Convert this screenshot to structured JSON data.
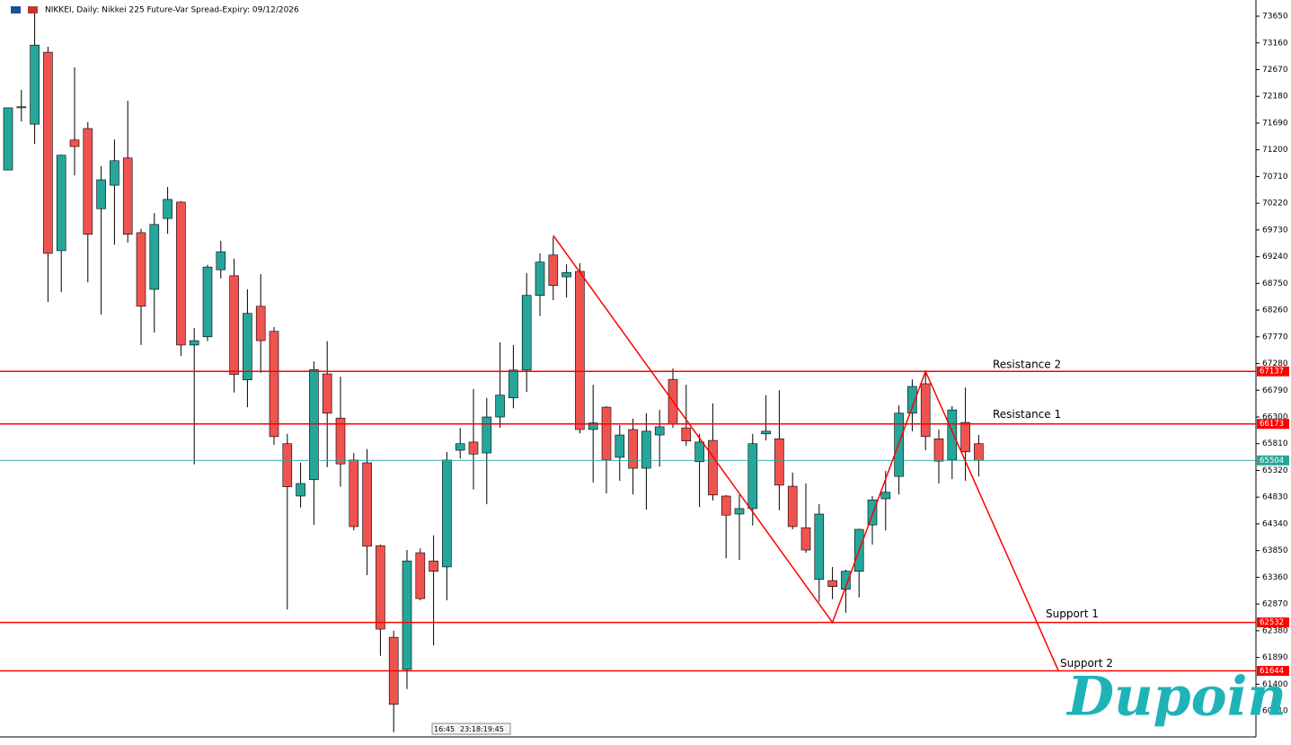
{
  "chart_data": {
    "type": "candlestick",
    "title": "NIKKEI, Daily:  Nikkei 225 Future-Var Spread-Expiry: 09/12/2026",
    "up_color": "#26a69a",
    "down_color": "#ef5350",
    "wick_color": "#000000",
    "open": [
      70830,
      71970,
      71670,
      72990,
      69350,
      71380,
      71590,
      70120,
      70550,
      71050,
      69680,
      68640,
      69940,
      70240,
      67620,
      67770,
      69000,
      68890,
      66980,
      68330,
      67870,
      65810,
      64850,
      65150,
      67090,
      66280,
      65510,
      65460,
      63940,
      62260,
      61670,
      63810,
      63660,
      63550,
      65690,
      65840,
      65640,
      66300,
      66650,
      67160,
      68530,
      69270,
      68870,
      68970,
      66070,
      66480,
      65560,
      66070,
      65360,
      65970,
      66990,
      66100,
      65480,
      65870,
      64850,
      64520,
      64620,
      65990,
      65900,
      65030,
      64270,
      63320,
      63300,
      63140,
      63470,
      64320,
      64800,
      65210,
      66370,
      66910,
      65900,
      65510,
      66200,
      65810
    ],
    "high": [
      71970,
      72300,
      73700,
      73090,
      71110,
      72710,
      71710,
      70900,
      71390,
      72100,
      69750,
      70040,
      70520,
      70260,
      67930,
      69090,
      69530,
      69200,
      68640,
      68920,
      67950,
      65990,
      65460,
      67320,
      67690,
      67040,
      65640,
      65710,
      63960,
      62380,
      63860,
      63890,
      64130,
      65660,
      66100,
      66810,
      66650,
      67670,
      67620,
      68940,
      69300,
      69600,
      69100,
      69120,
      66890,
      66500,
      66150,
      66270,
      66370,
      66430,
      67190,
      66890,
      65990,
      66550,
      64870,
      64870,
      65990,
      66700,
      66790,
      65280,
      65080,
      64700,
      63550,
      63500,
      64250,
      64850,
      65310,
      66510,
      66990,
      67140,
      66070,
      66500,
      66840,
      65970
    ],
    "low": [
      70830,
      71720,
      71310,
      68410,
      68590,
      70730,
      68770,
      68180,
      69460,
      69500,
      67620,
      67850,
      69660,
      67420,
      65430,
      67690,
      68840,
      66750,
      66480,
      67110,
      65790,
      62770,
      64640,
      64320,
      65380,
      65020,
      64220,
      63400,
      61920,
      60520,
      61310,
      62940,
      62110,
      62940,
      65540,
      64970,
      64700,
      66100,
      66460,
      66760,
      68150,
      68440,
      68490,
      66000,
      65100,
      64900,
      65130,
      64880,
      64600,
      65390,
      66100,
      65770,
      64650,
      64770,
      63710,
      63680,
      64310,
      65870,
      64590,
      64240,
      63810,
      62910,
      62960,
      62710,
      62990,
      63960,
      64220,
      64880,
      66040,
      65690,
      65080,
      65160,
      65130,
      65210
    ],
    "close": [
      71970,
      71990,
      73120,
      69300,
      71100,
      71260,
      69650,
      70650,
      71000,
      69650,
      68330,
      69830,
      70290,
      67620,
      67700,
      69050,
      69330,
      67080,
      68200,
      67700,
      65940,
      65020,
      65080,
      67170,
      66370,
      65440,
      64290,
      63930,
      62410,
      61030,
      63660,
      62970,
      63470,
      65510,
      65810,
      65620,
      66300,
      66700,
      67160,
      68530,
      69140,
      68710,
      68950,
      66070,
      66190,
      65510,
      65970,
      65360,
      66040,
      66120,
      66170,
      65860,
      65840,
      64870,
      64500,
      64620,
      65810,
      66040,
      65050,
      64290,
      63860,
      64520,
      63190,
      63470,
      64240,
      64780,
      64920,
      66370,
      66860,
      65940,
      65490,
      66430,
      65660,
      65504
    ],
    "ylim": [
      60433,
      73947
    ],
    "yticks": [
      73650,
      73160,
      72670,
      72180,
      71690,
      71200,
      70710,
      70220,
      69730,
      69240,
      68750,
      68260,
      67770,
      67280,
      66790,
      66300,
      65810,
      65320,
      64830,
      64340,
      63850,
      63360,
      62870,
      62380,
      61890,
      61400,
      60910
    ],
    "levels": [
      {
        "name": "Resistance 2",
        "value": 67137,
        "color": "#ff0000"
      },
      {
        "name": "Resistance 1",
        "value": 66173,
        "color": "#ff0000"
      },
      {
        "name": "Support 1",
        "value": 62532,
        "color": "#ff0000"
      },
      {
        "name": "Support 2",
        "value": 61644,
        "color": "#ff0000"
      }
    ],
    "last_price": {
      "value": 65504,
      "color": "#26a69a"
    },
    "zigzag": {
      "color": "#ff0000",
      "points": [
        {
          "x": 41,
          "y": 69630
        },
        {
          "x": 62,
          "y": 62532
        },
        {
          "x": 69,
          "y": 67137
        },
        {
          "x": 79,
          "y": 61644
        }
      ]
    }
  },
  "timer": [
    "16:45",
    "23:18:19:45"
  ],
  "watermark": "Dupoin"
}
